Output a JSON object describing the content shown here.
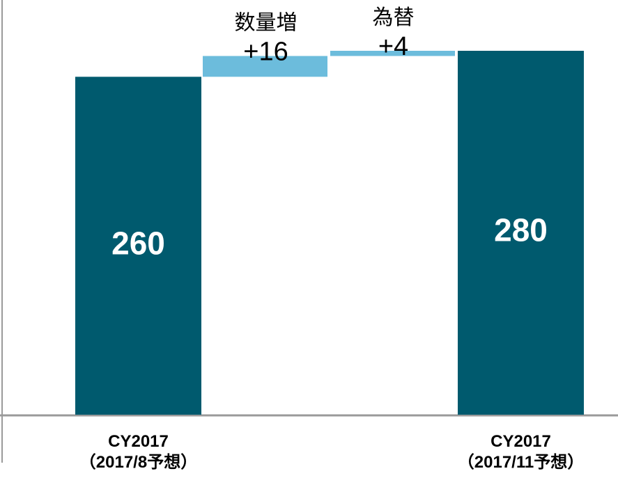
{
  "chart_data": {
    "type": "waterfall",
    "categories": [
      "CY2017\n（2017/8予想）",
      "数量増",
      "為替",
      "CY2017\n（2017/11予想）"
    ],
    "measures": [
      "total",
      "relative",
      "relative",
      "total"
    ],
    "values": [
      260,
      16,
      4,
      280
    ],
    "value_labels": [
      "260",
      "+16",
      "+4",
      "280"
    ],
    "colors": {
      "total": "#005a6e",
      "increase": "#6cbcdc"
    },
    "ylim": [
      0,
      280
    ]
  }
}
